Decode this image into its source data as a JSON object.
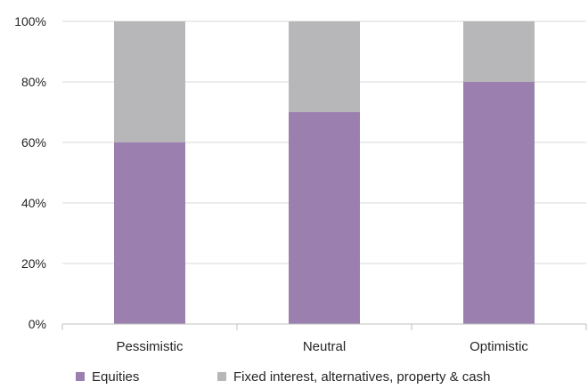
{
  "chart_data": {
    "type": "bar",
    "stacked": true,
    "categories": [
      "Pessimistic",
      "Neutral",
      "Optimistic"
    ],
    "series": [
      {
        "name": "Equities",
        "values": [
          60,
          70,
          80
        ],
        "color": "#9B80AF"
      },
      {
        "name": "Fixed interest, alternatives, property & cash",
        "values": [
          40,
          30,
          20
        ],
        "color": "#B7B7B9"
      }
    ],
    "ylim": [
      0,
      100
    ],
    "yticks": [
      "0%",
      "20%",
      "40%",
      "60%",
      "80%",
      "100%"
    ],
    "grid": true,
    "legend_position": "bottom",
    "title": "",
    "xlabel": "",
    "ylabel": ""
  }
}
